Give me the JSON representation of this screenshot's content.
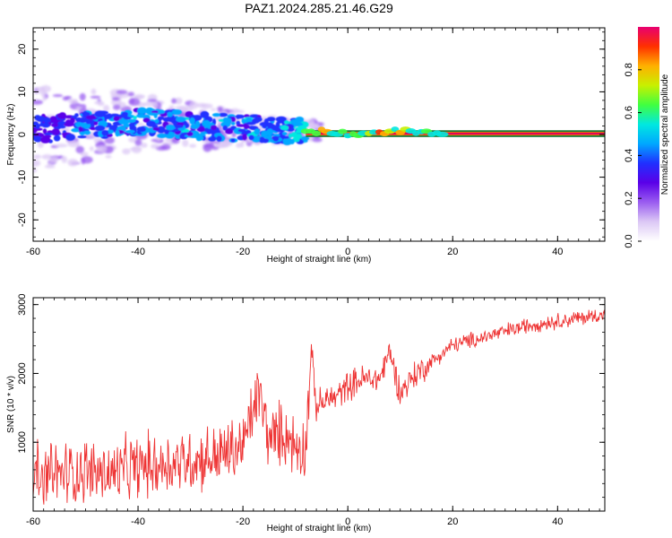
{
  "figure_title": "PAZ1.2024.285.21.46.G29",
  "chart_data": [
    {
      "type": "heatmap",
      "title": "PAZ1.2024.285.21.46.G29",
      "xlabel": "Height of straight line (km)",
      "ylabel": "Frequency (Hz)",
      "xlim": [
        -60,
        49
      ],
      "ylim": [
        -25,
        25
      ],
      "x_ticks": [
        -60,
        -40,
        -20,
        0,
        20,
        40
      ],
      "y_ticks": [
        -20,
        -10,
        0,
        10,
        20
      ],
      "grid": false,
      "colorbar": {
        "label": "Normalized spectral amplitude",
        "range": [
          0,
          1
        ],
        "ticks": [
          0.0,
          0.2,
          0.4,
          0.6,
          0.8
        ],
        "colormap": "rainbow",
        "colors": [
          "#ffffff",
          "#dcc8f5",
          "#9a5cf0",
          "#5a00e8",
          "#2030ff",
          "#00a8ff",
          "#00e8e0",
          "#40ff40",
          "#c8f000",
          "#ffb000",
          "#ff3000",
          "#e80070"
        ]
      },
      "description_points": [
        {
          "x": -58,
          "f": 1.2,
          "amplitude": 0.2
        },
        {
          "x": -50,
          "f": 2.0,
          "amplitude": 0.25
        },
        {
          "x": -40,
          "f": 3.0,
          "amplitude": 0.3
        },
        {
          "x": -30,
          "f": 2.0,
          "amplitude": 0.3
        },
        {
          "x": -20,
          "f": 1.5,
          "amplitude": 0.3
        },
        {
          "x": -12,
          "f": 1.0,
          "amplitude": 0.3
        },
        {
          "x": -5,
          "f": 0.8,
          "amplitude": 0.7
        },
        {
          "x": 0,
          "f": 0.2,
          "amplitude": 0.9
        },
        {
          "x": 10,
          "f": 0.8,
          "amplitude": 0.85
        },
        {
          "x": 20,
          "f": 0.2,
          "amplitude": 0.9
        },
        {
          "x": 30,
          "f": 0.2,
          "amplitude": 0.95
        },
        {
          "x": 49,
          "f": 0.2,
          "amplitude": 0.95
        }
      ]
    },
    {
      "type": "line",
      "xlabel": "Height of straight line (km)",
      "ylabel": "SNR (10 * v/v)",
      "xlim": [
        -60,
        49
      ],
      "ylim": [
        0,
        3100
      ],
      "x_ticks": [
        -60,
        -40,
        -20,
        0,
        20,
        40
      ],
      "y_ticks": [
        1000,
        2000,
        3000
      ],
      "grid": false,
      "series": [
        {
          "color": "#ee3333",
          "x": [
            -60,
            -55,
            -50,
            -45,
            -40,
            -35,
            -30,
            -25,
            -20,
            -17,
            -15,
            -12,
            -10,
            -8,
            -7,
            -6,
            -4,
            -2,
            0,
            3,
            6,
            8,
            10,
            12,
            15,
            20,
            25,
            30,
            35,
            40,
            45,
            49
          ],
          "y": [
            450,
            500,
            550,
            500,
            600,
            650,
            700,
            750,
            900,
            1700,
            1000,
            1100,
            900,
            900,
            2300,
            1500,
            1600,
            1650,
            1800,
            1900,
            1900,
            2300,
            1700,
            1900,
            2100,
            2400,
            2500,
            2600,
            2700,
            2750,
            2800,
            2850
          ]
        }
      ]
    }
  ]
}
